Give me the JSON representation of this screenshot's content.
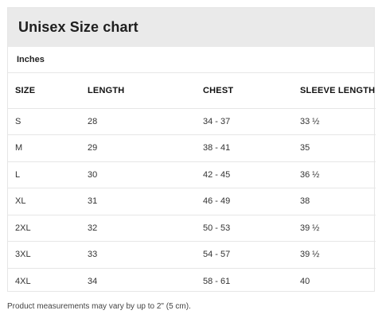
{
  "title": "Unisex Size chart",
  "unit": "Inches",
  "columns": [
    "SIZE",
    "LENGTH",
    "CHEST",
    "SLEEVE LENGTH"
  ],
  "rows": [
    [
      "S",
      "28",
      "34 - 37",
      "33 ½"
    ],
    [
      "M",
      "29",
      "38 - 41",
      "35"
    ],
    [
      "L",
      "30",
      "42 - 45",
      "36 ½"
    ],
    [
      "XL",
      "31",
      "46 - 49",
      "38"
    ],
    [
      "2XL",
      "32",
      "50 - 53",
      "39 ½"
    ],
    [
      "3XL",
      "33",
      "54 - 57",
      "39 ½"
    ],
    [
      "4XL",
      "34",
      "58 - 61",
      "40"
    ]
  ],
  "footnote": "Product measurements may vary by up to 2\" (5 cm)."
}
